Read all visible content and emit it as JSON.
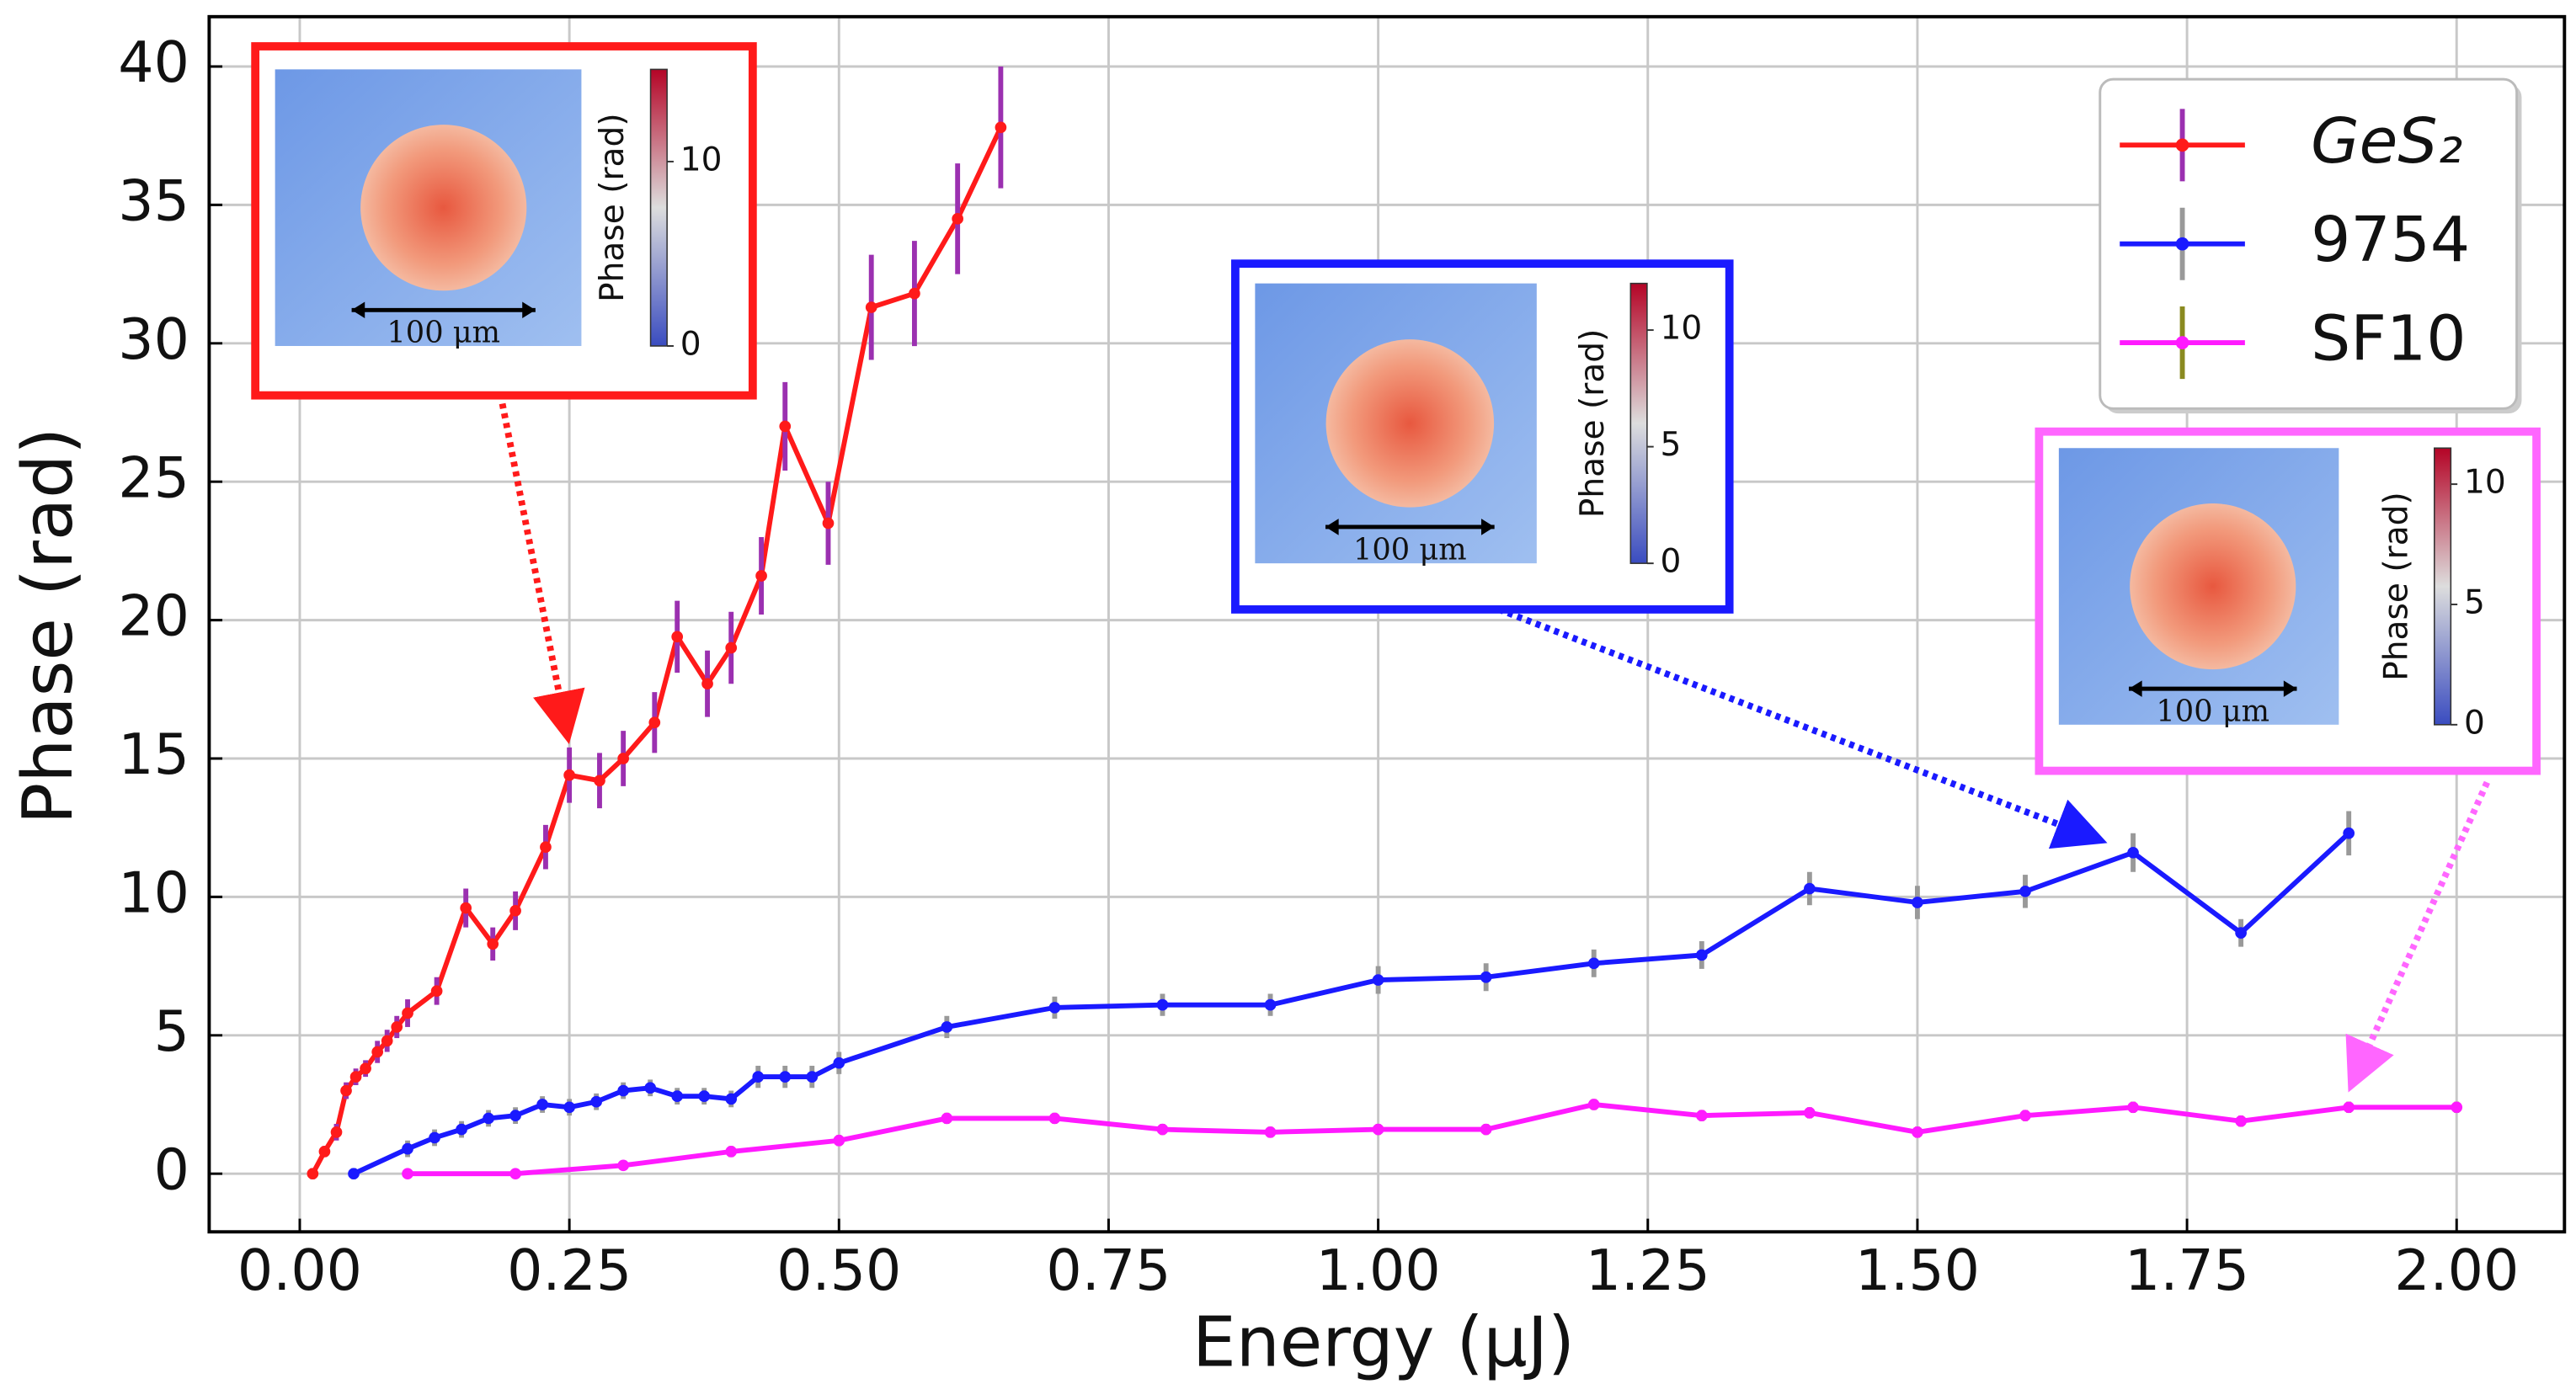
{
  "chart_data": {
    "type": "line",
    "xlabel": "Energy (μJ)",
    "ylabel": "Phase (rad)",
    "xlim": [
      -0.084,
      2.1
    ],
    "ylim": [
      -2.1,
      41.8
    ],
    "xticks": [
      {
        "value": 0,
        "label": "0.00"
      },
      {
        "value": 0.25,
        "label": "0.25"
      },
      {
        "value": 0.5,
        "label": "0.50"
      },
      {
        "value": 0.75,
        "label": "0.75"
      },
      {
        "value": 1,
        "label": "1.00"
      },
      {
        "value": 1.25,
        "label": "1.25"
      },
      {
        "value": 1.5,
        "label": "1.50"
      },
      {
        "value": 1.75,
        "label": "1.75"
      },
      {
        "value": 2,
        "label": "2.00"
      }
    ],
    "yticks": [
      0,
      5,
      10,
      15,
      20,
      25,
      30,
      35,
      40
    ],
    "grid": true,
    "legend": "upper right",
    "series": [
      {
        "name": "GeS₂",
        "color": "#ff1a1a",
        "error_color": "#9b30b0",
        "x": [
          0.012,
          0.023,
          0.034,
          0.043,
          0.052,
          0.061,
          0.072,
          0.081,
          0.09,
          0.1,
          0.127,
          0.154,
          0.179,
          0.2,
          0.228,
          0.25,
          0.278,
          0.3,
          0.329,
          0.35,
          0.378,
          0.4,
          0.428,
          0.45,
          0.49,
          0.53,
          0.57,
          0.61,
          0.65
        ],
        "values": [
          0,
          0.8,
          1.5,
          3.0,
          3.5,
          3.8,
          4.4,
          4.8,
          5.3,
          5.8,
          6.6,
          9.6,
          8.3,
          9.5,
          11.8,
          14.4,
          14.2,
          15,
          16.3,
          19.4,
          17.7,
          19,
          21.6,
          27,
          23.5,
          31.3,
          31.8,
          34.5,
          37.8
        ],
        "errors": [
          0.2,
          0.2,
          0.3,
          0.3,
          0.3,
          0.3,
          0.4,
          0.4,
          0.4,
          0.5,
          0.5,
          0.7,
          0.6,
          0.7,
          0.8,
          1.0,
          1.0,
          1.0,
          1.1,
          1.3,
          1.2,
          1.3,
          1.4,
          1.6,
          1.5,
          1.9,
          1.9,
          2.0,
          2.2
        ]
      },
      {
        "name": "9754",
        "color": "#1a1aff",
        "error_color": "#999999",
        "x": [
          0.05,
          0.1,
          0.125,
          0.15,
          0.175,
          0.2,
          0.225,
          0.25,
          0.275,
          0.3,
          0.325,
          0.35,
          0.375,
          0.4,
          0.425,
          0.45,
          0.475,
          0.5,
          0.6,
          0.7,
          0.8,
          0.9,
          1.0,
          1.1,
          1.2,
          1.3,
          1.4,
          1.5,
          1.6,
          1.7,
          1.8,
          1.9
        ],
        "values": [
          0,
          0.9,
          1.3,
          1.6,
          2.0,
          2.1,
          2.5,
          2.4,
          2.6,
          3.0,
          3.1,
          2.8,
          2.8,
          2.7,
          3.5,
          3.5,
          3.5,
          4.0,
          5.3,
          6.0,
          6.1,
          6.1,
          7.0,
          7.1,
          7.6,
          7.9,
          10.3,
          9.8,
          10.2,
          11.6,
          8.7,
          12.3
        ],
        "errors": [
          0.2,
          0.3,
          0.3,
          0.3,
          0.3,
          0.3,
          0.3,
          0.3,
          0.3,
          0.3,
          0.3,
          0.3,
          0.3,
          0.3,
          0.4,
          0.4,
          0.4,
          0.4,
          0.4,
          0.4,
          0.4,
          0.4,
          0.5,
          0.5,
          0.5,
          0.5,
          0.6,
          0.6,
          0.6,
          0.7,
          0.5,
          0.8
        ]
      },
      {
        "name": "SF10",
        "color": "#ff1aff",
        "error_color": "#8a8a20",
        "x": [
          0.1,
          0.2,
          0.3,
          0.4,
          0.5,
          0.6,
          0.7,
          0.8,
          0.9,
          1.0,
          1.1,
          1.2,
          1.3,
          1.4,
          1.5,
          1.6,
          1.7,
          1.8,
          1.9,
          2.0
        ],
        "values": [
          0,
          0,
          0.3,
          0.8,
          1.2,
          2.0,
          2.0,
          1.6,
          1.5,
          1.6,
          1.6,
          2.5,
          2.1,
          2.2,
          1.5,
          2.1,
          2.4,
          1.9,
          2.4,
          2.4
        ],
        "errors": [
          0.1,
          0.1,
          0.1,
          0.2,
          0.2,
          0.2,
          0.2,
          0.2,
          0.2,
          0.2,
          0.2,
          0.2,
          0.2,
          0.2,
          0.2,
          0.2,
          0.2,
          0.2,
          0.2,
          0.2
        ]
      }
    ],
    "insets": [
      {
        "color": "#ff1a1a",
        "scale_label": "100 μm",
        "colorbar_label": "Phase (rad)",
        "colorbar_lim": [
          0,
          15
        ],
        "colorbar_ticks": [
          0,
          10
        ]
      },
      {
        "color": "#1a1aff",
        "scale_label": "100 μm",
        "colorbar_label": "Phase (rad)",
        "colorbar_lim": [
          0,
          12
        ],
        "colorbar_ticks": [
          0,
          5,
          10
        ]
      },
      {
        "color": "#ff66ff",
        "scale_label": "100 μm",
        "colorbar_label": "Phase (rad)",
        "colorbar_lim": [
          0,
          11.5
        ],
        "colorbar_ticks": [
          0,
          5,
          10
        ]
      }
    ]
  }
}
